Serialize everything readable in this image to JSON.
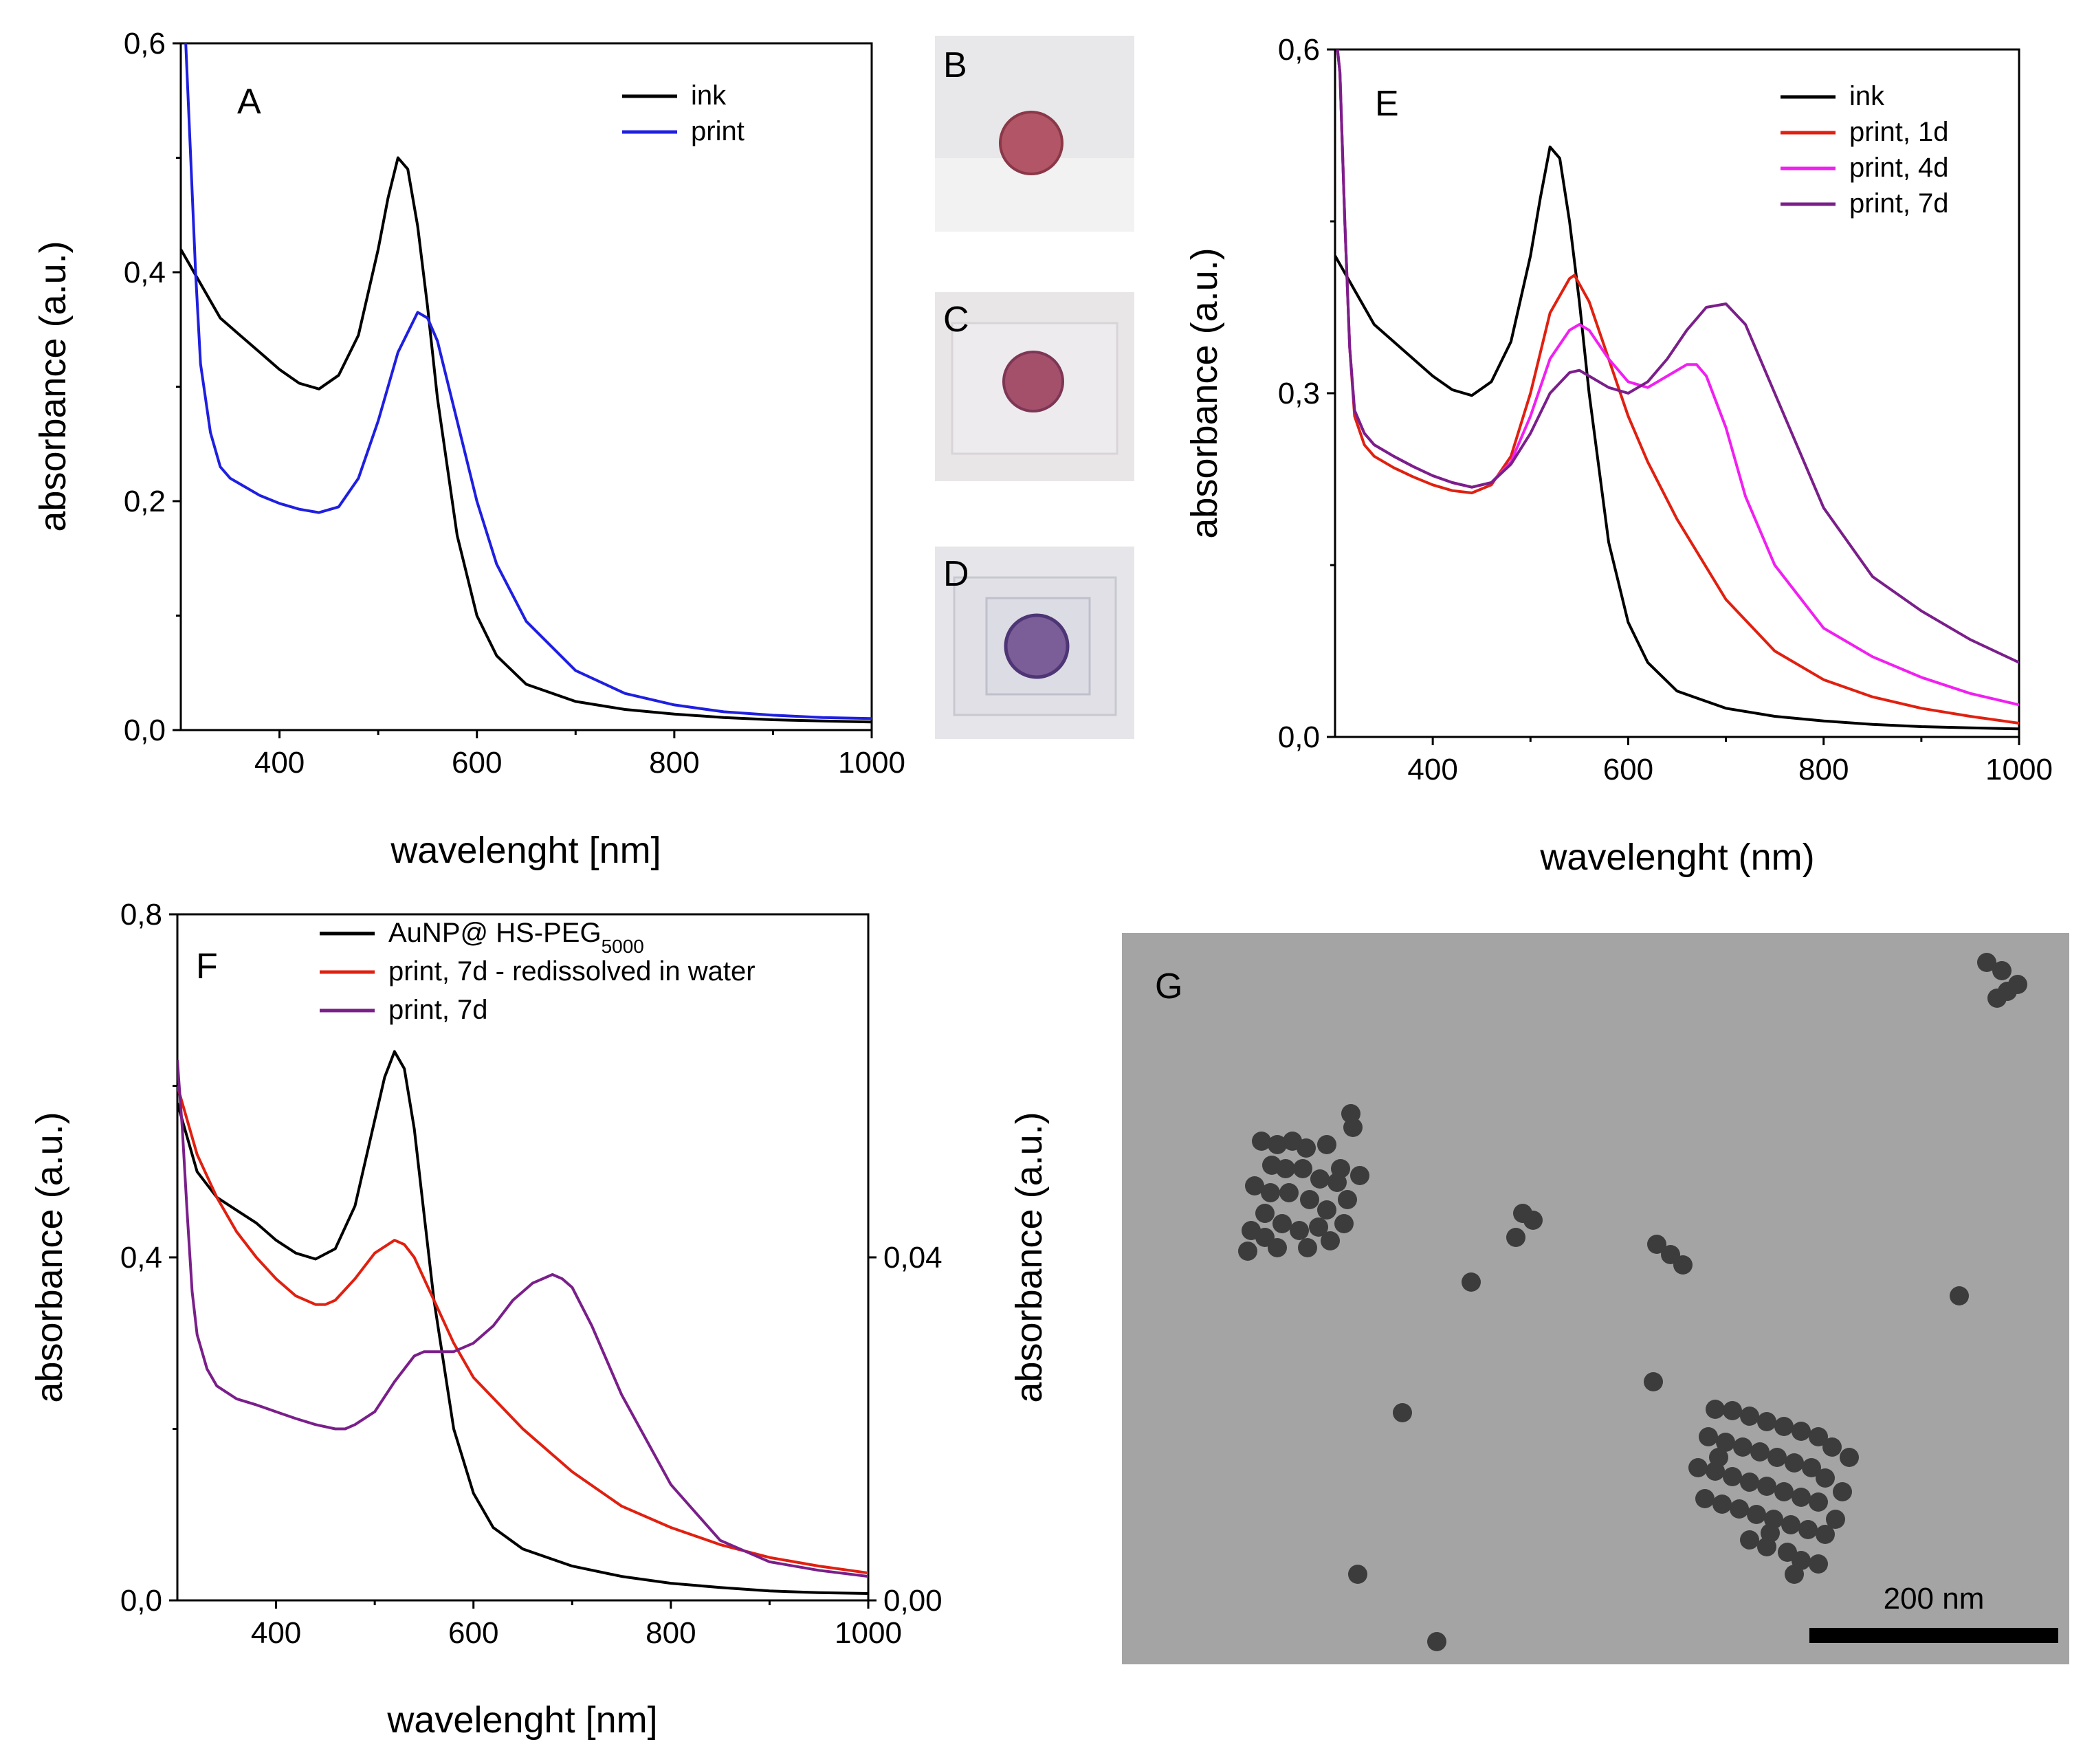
{
  "chart_data": [
    {
      "panel": "A",
      "type": "line",
      "xlabel": "wavelenght [nm]",
      "ylabel": "absorbance (a.u.)",
      "xlim": [
        300,
        1000
      ],
      "ylim": [
        0,
        0.6
      ],
      "x_ticks": [
        400,
        600,
        800,
        1000
      ],
      "x_tick_labels": [
        "400",
        "600",
        "800",
        "1000"
      ],
      "y_ticks": [
        0,
        0.2,
        0.4,
        0.6
      ],
      "y_tick_labels": [
        "0,0",
        "0,2",
        "0,4",
        "0,6"
      ],
      "legend_position": "top-right",
      "series": [
        {
          "name": "ink",
          "color": "#000000",
          "x": [
            300,
            320,
            340,
            360,
            380,
            400,
            420,
            440,
            460,
            480,
            500,
            510,
            520,
            530,
            540,
            550,
            560,
            580,
            600,
            620,
            650,
            700,
            750,
            800,
            850,
            900,
            950,
            1000
          ],
          "y": [
            0.42,
            0.39,
            0.36,
            0.345,
            0.33,
            0.315,
            0.303,
            0.298,
            0.31,
            0.345,
            0.42,
            0.465,
            0.5,
            0.49,
            0.44,
            0.37,
            0.29,
            0.17,
            0.1,
            0.065,
            0.04,
            0.025,
            0.018,
            0.014,
            0.011,
            0.009,
            0.008,
            0.007
          ]
        },
        {
          "name": "print",
          "color": "#1f1fe0",
          "x": [
            300,
            305,
            310,
            315,
            320,
            330,
            340,
            350,
            360,
            380,
            400,
            420,
            440,
            460,
            480,
            500,
            520,
            540,
            550,
            560,
            580,
            600,
            620,
            650,
            700,
            750,
            800,
            850,
            900,
            950,
            1000
          ],
          "y": [
            0.62,
            0.6,
            0.5,
            0.4,
            0.32,
            0.26,
            0.23,
            0.22,
            0.215,
            0.205,
            0.198,
            0.193,
            0.19,
            0.195,
            0.22,
            0.27,
            0.33,
            0.365,
            0.36,
            0.34,
            0.27,
            0.2,
            0.145,
            0.095,
            0.052,
            0.032,
            0.022,
            0.016,
            0.013,
            0.011,
            0.01
          ]
        }
      ]
    },
    {
      "panel": "E",
      "type": "line",
      "xlabel": "wavelenght (nm)",
      "ylabel": "absorbance (a.u.)",
      "xlim": [
        300,
        1000
      ],
      "ylim": [
        0,
        0.6
      ],
      "x_ticks": [
        400,
        600,
        800,
        1000
      ],
      "x_tick_labels": [
        "400",
        "600",
        "800",
        "1000"
      ],
      "y_ticks": [
        0,
        0.3,
        0.6
      ],
      "y_tick_labels": [
        "0,0",
        "0,3",
        "0,6"
      ],
      "legend_position": "top-right",
      "series": [
        {
          "name": "ink",
          "color": "#000000",
          "x": [
            300,
            320,
            340,
            360,
            380,
            400,
            420,
            440,
            460,
            480,
            500,
            510,
            520,
            530,
            540,
            550,
            560,
            580,
            600,
            620,
            650,
            700,
            750,
            800,
            850,
            900,
            950,
            1000
          ],
          "y": [
            0.42,
            0.39,
            0.36,
            0.345,
            0.33,
            0.315,
            0.303,
            0.298,
            0.31,
            0.345,
            0.42,
            0.47,
            0.515,
            0.505,
            0.45,
            0.38,
            0.3,
            0.17,
            0.1,
            0.065,
            0.04,
            0.025,
            0.018,
            0.014,
            0.011,
            0.009,
            0.008,
            0.007
          ]
        },
        {
          "name": "print, 1d",
          "color": "#e02010",
          "x": [
            300,
            305,
            310,
            315,
            320,
            330,
            340,
            360,
            380,
            400,
            420,
            440,
            460,
            480,
            500,
            520,
            540,
            545,
            560,
            580,
            600,
            620,
            650,
            700,
            750,
            800,
            850,
            900,
            950,
            1000
          ],
          "y": [
            0.62,
            0.58,
            0.45,
            0.34,
            0.28,
            0.255,
            0.245,
            0.235,
            0.227,
            0.22,
            0.215,
            0.213,
            0.22,
            0.245,
            0.3,
            0.37,
            0.4,
            0.403,
            0.38,
            0.33,
            0.28,
            0.24,
            0.19,
            0.12,
            0.075,
            0.05,
            0.035,
            0.025,
            0.018,
            0.012
          ]
        },
        {
          "name": "print, 4d",
          "color": "#f020f0",
          "x": [
            300,
            305,
            310,
            315,
            320,
            330,
            340,
            360,
            380,
            400,
            420,
            440,
            460,
            480,
            500,
            520,
            540,
            550,
            560,
            580,
            600,
            620,
            640,
            660,
            670,
            680,
            700,
            720,
            750,
            800,
            850,
            900,
            950,
            1000
          ],
          "y": [
            0.62,
            0.58,
            0.45,
            0.34,
            0.285,
            0.265,
            0.255,
            0.245,
            0.236,
            0.228,
            0.222,
            0.218,
            0.222,
            0.24,
            0.28,
            0.33,
            0.355,
            0.36,
            0.355,
            0.33,
            0.31,
            0.305,
            0.315,
            0.325,
            0.325,
            0.315,
            0.27,
            0.21,
            0.15,
            0.095,
            0.07,
            0.052,
            0.038,
            0.028
          ]
        },
        {
          "name": "print, 7d",
          "color": "#7a1f8a",
          "x": [
            300,
            305,
            310,
            315,
            320,
            330,
            340,
            360,
            380,
            400,
            420,
            440,
            460,
            480,
            500,
            520,
            540,
            550,
            560,
            580,
            600,
            620,
            640,
            660,
            680,
            700,
            720,
            750,
            800,
            850,
            900,
            950,
            1000
          ],
          "y": [
            0.62,
            0.58,
            0.45,
            0.34,
            0.285,
            0.265,
            0.255,
            0.245,
            0.236,
            0.228,
            0.222,
            0.218,
            0.222,
            0.238,
            0.265,
            0.3,
            0.318,
            0.32,
            0.315,
            0.305,
            0.3,
            0.31,
            0.33,
            0.355,
            0.375,
            0.378,
            0.36,
            0.3,
            0.2,
            0.14,
            0.11,
            0.085,
            0.065
          ]
        }
      ]
    },
    {
      "panel": "F",
      "type": "line",
      "xlabel": "wavelenght [nm]",
      "ylabel": "absorbance (a.u.)",
      "ylabel_right": "absorbance (a.u.)",
      "xlim": [
        300,
        1000
      ],
      "ylim": [
        0,
        0.8
      ],
      "ylim_right": [
        0,
        0.08
      ],
      "x_ticks": [
        400,
        600,
        800,
        1000
      ],
      "x_tick_labels": [
        "400",
        "600",
        "800",
        "1000"
      ],
      "y_ticks": [
        0,
        0.4,
        0.8
      ],
      "y_tick_labels": [
        "0,0",
        "0,4",
        "0,8"
      ],
      "y_right_ticks": [
        0,
        0.04
      ],
      "y_right_tick_labels": [
        "0,00",
        "0,04"
      ],
      "legend_position": "top-right",
      "series": [
        {
          "name": "AuNP@ HS-PEG",
          "name_sub": "5000",
          "color": "#000000",
          "axis": "left",
          "x": [
            300,
            320,
            340,
            360,
            380,
            400,
            420,
            440,
            460,
            480,
            500,
            510,
            520,
            530,
            540,
            550,
            560,
            580,
            600,
            620,
            650,
            700,
            750,
            800,
            850,
            900,
            950,
            1000
          ],
          "y": [
            0.58,
            0.5,
            0.47,
            0.455,
            0.44,
            0.42,
            0.405,
            0.398,
            0.41,
            0.46,
            0.56,
            0.61,
            0.64,
            0.62,
            0.55,
            0.45,
            0.35,
            0.2,
            0.125,
            0.085,
            0.06,
            0.04,
            0.028,
            0.02,
            0.015,
            0.011,
            0.009,
            0.008
          ]
        },
        {
          "name": "print, 7d - redissolved in water",
          "color": "#e02010",
          "axis": "left",
          "x": [
            300,
            320,
            340,
            360,
            380,
            400,
            420,
            440,
            450,
            460,
            480,
            500,
            520,
            530,
            540,
            560,
            580,
            600,
            650,
            700,
            750,
            800,
            850,
            900,
            950,
            1000
          ],
          "y": [
            0.6,
            0.52,
            0.47,
            0.43,
            0.4,
            0.375,
            0.355,
            0.345,
            0.345,
            0.35,
            0.375,
            0.405,
            0.42,
            0.415,
            0.4,
            0.35,
            0.3,
            0.26,
            0.2,
            0.15,
            0.11,
            0.085,
            0.065,
            0.05,
            0.04,
            0.032
          ]
        },
        {
          "name": "print, 7d",
          "color": "#7a1f8a",
          "axis": "right",
          "x": [
            300,
            305,
            310,
            315,
            320,
            330,
            340,
            360,
            380,
            400,
            420,
            440,
            460,
            470,
            480,
            500,
            520,
            540,
            550,
            560,
            580,
            600,
            620,
            640,
            660,
            680,
            690,
            700,
            720,
            750,
            800,
            850,
            900,
            950,
            1000
          ],
          "y": [
            0.063,
            0.055,
            0.045,
            0.036,
            0.031,
            0.027,
            0.025,
            0.0235,
            0.0228,
            0.022,
            0.0212,
            0.0205,
            0.02,
            0.02,
            0.0205,
            0.022,
            0.0255,
            0.0285,
            0.029,
            0.029,
            0.029,
            0.03,
            0.032,
            0.035,
            0.037,
            0.038,
            0.0375,
            0.0365,
            0.032,
            0.024,
            0.0135,
            0.007,
            0.0045,
            0.0035,
            0.0028
          ]
        }
      ]
    }
  ],
  "photos": [
    {
      "letter": "B",
      "spot_color": "#b25566",
      "spot_edge": "#8a3848",
      "bg": "#e8e8ea"
    },
    {
      "letter": "C",
      "spot_color": "#a4506a",
      "spot_edge": "#7e3655",
      "bg": "#e9e6e8"
    },
    {
      "letter": "D",
      "spot_color": "#7b5e98",
      "spot_edge": "#4e3575",
      "bg": "#e6e6ea"
    }
  ],
  "tem": {
    "letter": "G",
    "scale_bar_label": "200 nm",
    "background_color": "#a4a4a4",
    "particle_color": "#3c3c3c"
  }
}
